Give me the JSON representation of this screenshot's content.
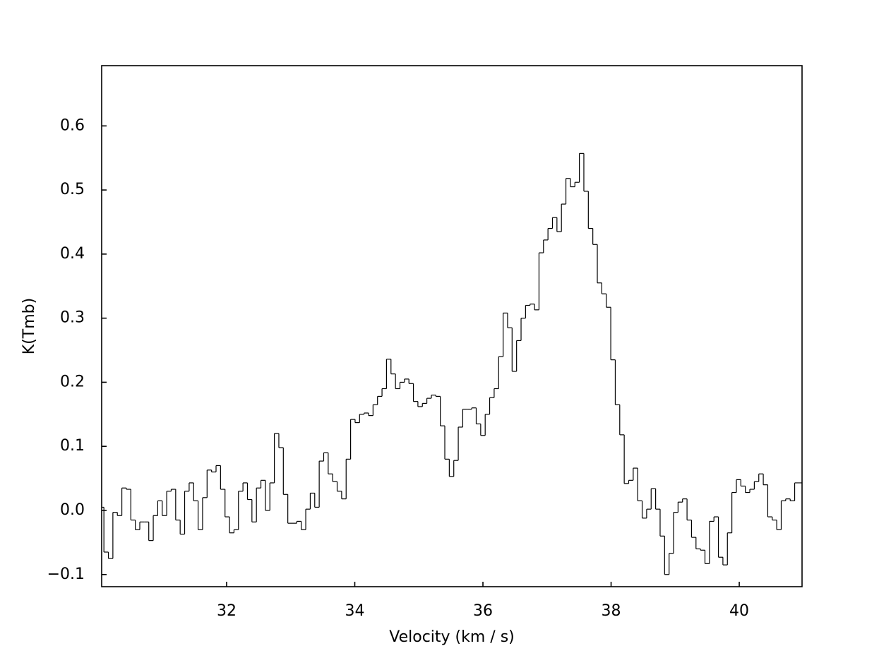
{
  "chart_data": {
    "type": "step",
    "xlabel": "Velocity (km / s)",
    "ylabel": "K(Tmb)",
    "color": "#000000",
    "xlim": [
      30.05,
      40.98
    ],
    "ylim": [
      -0.119,
      0.694
    ],
    "xticks": [
      32,
      34,
      36,
      38,
      40
    ],
    "yticks": [
      {
        "value": -0.1,
        "label": "−0.1"
      },
      {
        "value": 0,
        "label": "0.0"
      },
      0.1,
      0.2,
      0.3,
      0.4,
      0.5,
      0.6
    ],
    "x": [
      30.05,
      30.12,
      30.19,
      30.26,
      30.33,
      30.4,
      30.47,
      30.54,
      30.61,
      30.68,
      30.75,
      30.82,
      30.89,
      30.96,
      31.03,
      31.1,
      31.17,
      31.24,
      31.31,
      31.38,
      31.45,
      31.52,
      31.59,
      31.66,
      31.73,
      31.8,
      31.87,
      31.94,
      32.01,
      32.08,
      32.15,
      32.22,
      32.29,
      32.36,
      32.43,
      32.5,
      32.57,
      32.64,
      32.71,
      32.78,
      32.85,
      32.92,
      32.99,
      33.06,
      33.13,
      33.2,
      33.27,
      33.34,
      33.41,
      33.48,
      33.55,
      33.62,
      33.69,
      33.76,
      33.83,
      33.9,
      33.97,
      34.04,
      34.11,
      34.18,
      34.25,
      34.32,
      34.39,
      34.46,
      34.53,
      34.6,
      34.67,
      34.74,
      34.81,
      34.88,
      34.95,
      35.02,
      35.09,
      35.16,
      35.23,
      35.3,
      35.37,
      35.44,
      35.51,
      35.58,
      35.65,
      35.72,
      35.79,
      35.86,
      35.93,
      36.0,
      36.07,
      36.14,
      36.21,
      36.28,
      36.35,
      36.42,
      36.49,
      36.56,
      36.63,
      36.7,
      36.77,
      36.84,
      36.91,
      36.98,
      37.05,
      37.12,
      37.19,
      37.26,
      37.33,
      37.4,
      37.47,
      37.54,
      37.61,
      37.68,
      37.75,
      37.82,
      37.89,
      37.96,
      38.03,
      38.1,
      38.17,
      38.24,
      38.31,
      38.38,
      38.45,
      38.52,
      38.59,
      38.66,
      38.73,
      38.8,
      38.87,
      38.94,
      39.01,
      39.08,
      39.15,
      39.22,
      39.29,
      39.36,
      39.43,
      39.5,
      39.57,
      39.64,
      39.71,
      39.78,
      39.85,
      39.92,
      39.99,
      40.06,
      40.13,
      40.2,
      40.27,
      40.34,
      40.41,
      40.48,
      40.55,
      40.62,
      40.69,
      40.76,
      40.83,
      40.9
    ],
    "values": [
      0.005,
      -0.065,
      -0.075,
      -0.003,
      -0.008,
      0.035,
      0.033,
      -0.015,
      -0.03,
      -0.018,
      -0.018,
      -0.047,
      -0.008,
      0.015,
      -0.008,
      0.03,
      0.033,
      -0.015,
      -0.037,
      0.03,
      0.043,
      0.015,
      -0.03,
      0.02,
      0.063,
      0.06,
      0.07,
      0.033,
      -0.01,
      -0.035,
      -0.03,
      0.03,
      0.043,
      0.017,
      -0.018,
      0.035,
      0.047,
      0.0,
      0.043,
      0.12,
      0.098,
      0.025,
      -0.02,
      -0.02,
      -0.017,
      -0.03,
      0.002,
      0.027,
      0.005,
      0.077,
      0.09,
      0.057,
      0.045,
      0.03,
      0.018,
      0.08,
      0.142,
      0.137,
      0.15,
      0.152,
      0.148,
      0.165,
      0.178,
      0.19,
      0.236,
      0.213,
      0.19,
      0.2,
      0.205,
      0.198,
      0.17,
      0.162,
      0.167,
      0.175,
      0.18,
      0.178,
      0.132,
      0.08,
      0.053,
      0.078,
      0.13,
      0.158,
      0.158,
      0.16,
      0.135,
      0.117,
      0.15,
      0.176,
      0.19,
      0.24,
      0.308,
      0.285,
      0.217,
      0.265,
      0.3,
      0.32,
      0.322,
      0.313,
      0.402,
      0.422,
      0.44,
      0.457,
      0.435,
      0.478,
      0.518,
      0.505,
      0.512,
      0.557,
      0.498,
      0.44,
      0.415,
      0.355,
      0.338,
      0.317,
      0.235,
      0.165,
      0.118,
      0.042,
      0.047,
      0.066,
      0.015,
      -0.012,
      0.002,
      0.034,
      0.002,
      -0.04,
      -0.1,
      -0.067,
      -0.003,
      0.013,
      0.018,
      -0.015,
      -0.042,
      -0.06,
      -0.062,
      -0.083,
      -0.017,
      -0.01,
      -0.073,
      -0.085,
      -0.035,
      0.028,
      0.048,
      0.038,
      0.028,
      0.033,
      0.045,
      0.057,
      0.04,
      -0.01,
      -0.015,
      -0.03,
      0.015,
      0.018,
      0.015,
      0.043
    ]
  }
}
